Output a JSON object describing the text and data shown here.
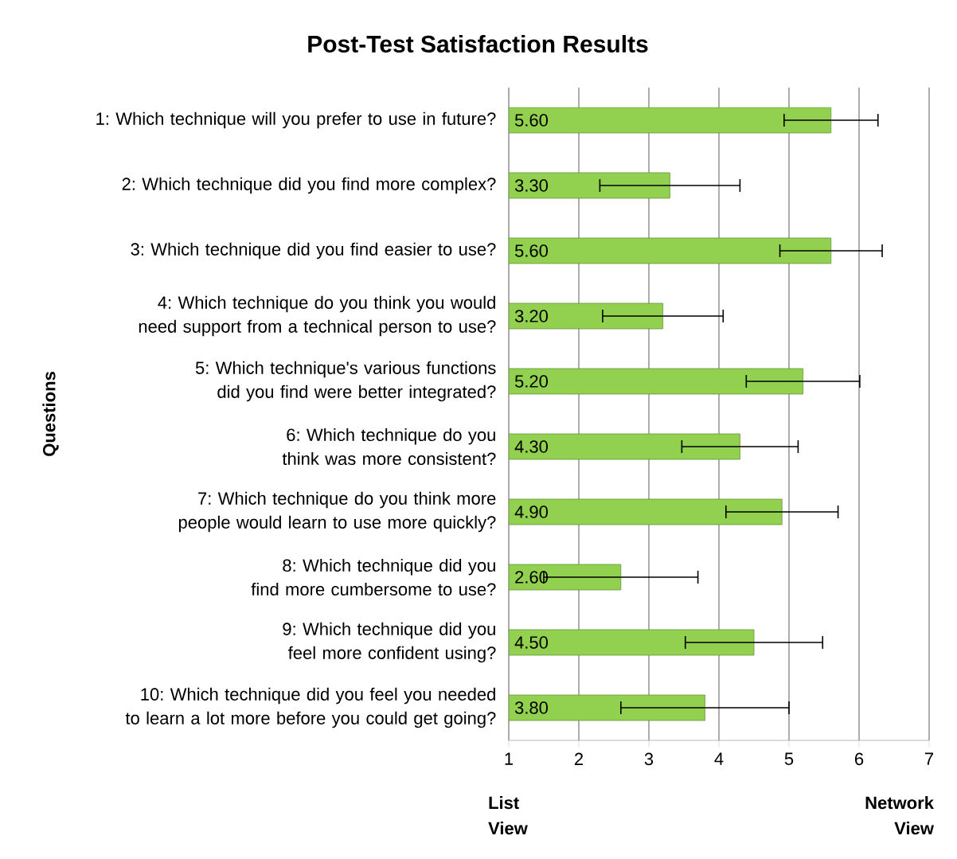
{
  "chart_data": {
    "type": "bar",
    "orientation": "horizontal",
    "title": "Post-Test Satisfaction Results",
    "ylabel": "Questions",
    "categories": [
      "1: Which technique will you prefer to use in future?",
      "2: Which technique did you find more complex?",
      "3: Which technique did you find easier to use?",
      "4: Which technique do you think you would need support from a technical person to use?",
      "5: Which technique's various functions did you find were better integrated?",
      "6: Which technique do you think was more consistent?",
      "7: Which technique do you think more people would learn to use more quickly?",
      "8: Which technique did you find more cumbersome to use?",
      "9: Which technique did you feel more confident using?",
      "10: Which technique did you feel you needed to learn a lot more before you could get going?"
    ],
    "values": [
      5.6,
      3.3,
      5.6,
      3.2,
      5.2,
      4.3,
      4.9,
      2.6,
      4.5,
      3.8
    ],
    "value_labels": [
      "5.60",
      "3.30",
      "5.60",
      "3.20",
      "5.20",
      "4.30",
      "4.90",
      "2.60",
      "4.50",
      "3.80"
    ],
    "errors": [
      0.67,
      1.0,
      0.73,
      0.86,
      0.81,
      0.83,
      0.8,
      1.1,
      0.98,
      1.2
    ],
    "color": "#92d050",
    "xlim": [
      1,
      7
    ],
    "xticks": [
      1,
      2,
      3,
      4,
      5,
      6,
      7
    ],
    "grid": "x",
    "annotations": [
      "List View",
      "Network View"
    ]
  }
}
